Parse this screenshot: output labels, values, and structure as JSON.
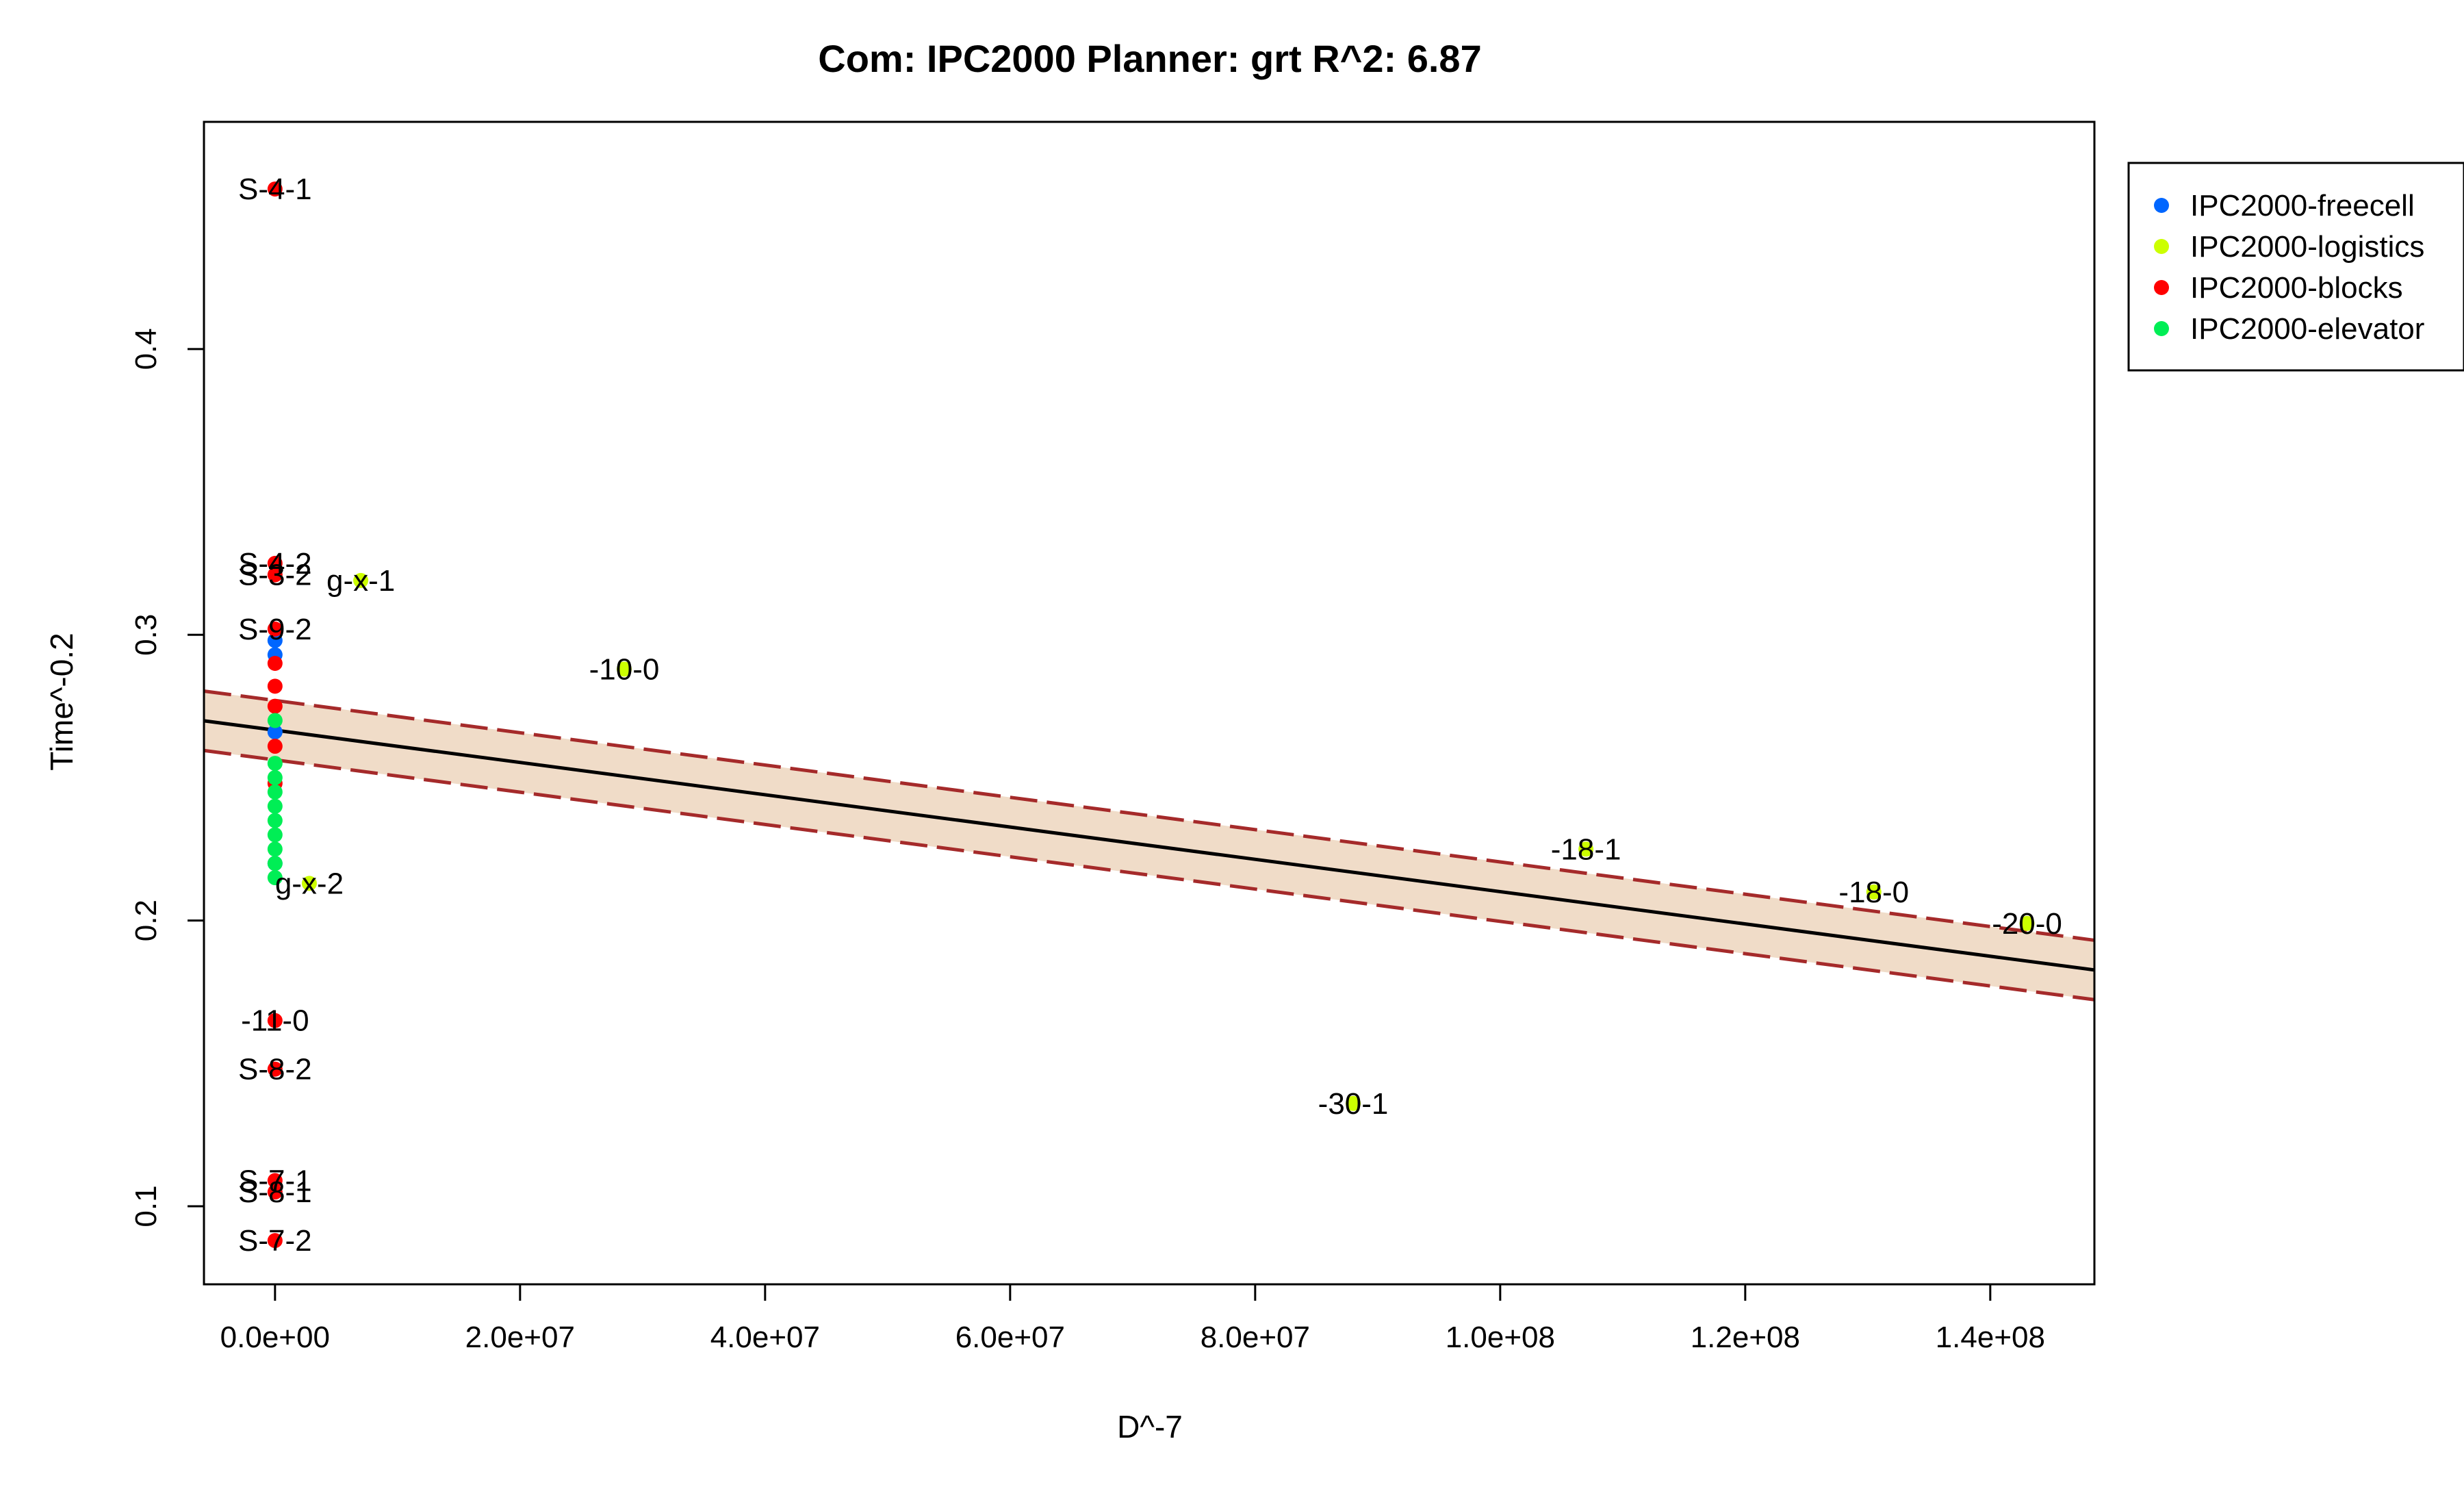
{
  "chart_data": {
    "type": "scatter",
    "title": "Com: IPC2000 Planner: grt R^2: 6.87",
    "xlabel": "D^-7",
    "ylabel": "Time^-0.2",
    "xlim": [
      -5800000,
      148500000
    ],
    "ylim": [
      0.0727,
      0.4795
    ],
    "x_ticks": [
      0,
      20000000,
      40000000,
      60000000,
      80000000,
      100000000,
      120000000,
      140000000
    ],
    "x_tick_labels": [
      "0.0e+00",
      "2.0e+07",
      "4.0e+07",
      "6.0e+07",
      "8.0e+07",
      "1.0e+08",
      "1.2e+08",
      "1.4e+08"
    ],
    "y_ticks": [
      0.1,
      0.2,
      0.3,
      0.4
    ],
    "y_tick_labels": [
      "0.1",
      "0.2",
      "0.3",
      "0.4"
    ],
    "grid": false,
    "legend_position": "top-right (outside plot)",
    "colors": {
      "IPC2000-freecell": "#0066ff",
      "IPC2000-logistics": "#ccff00",
      "IPC2000-blocks": "#ff0000",
      "IPC2000-elevator": "#00ee55",
      "fit_line": "#000000",
      "band_fill": "#f0dcc8",
      "band_edge": "#a52a2a"
    },
    "legend": [
      "IPC2000-freecell",
      "IPC2000-logistics",
      "IPC2000-blocks",
      "IPC2000-elevator"
    ],
    "fit": {
      "x": [
        -5800000,
        148500000
      ],
      "y": [
        0.2699,
        0.1827
      ],
      "lower": [
        0.2595,
        0.1723
      ],
      "upper": [
        0.2803,
        0.1931
      ]
    },
    "series": [
      {
        "name": "IPC2000-freecell",
        "points": [
          {
            "x": 0,
            "y": 0.266,
            "label": ""
          },
          {
            "x": 0,
            "y": 0.293,
            "label": ""
          },
          {
            "x": 0,
            "y": 0.298,
            "label": ""
          },
          {
            "x": 0,
            "y": 0.22,
            "label": ""
          }
        ]
      },
      {
        "name": "IPC2000-logistics",
        "points": [
          {
            "x": 7000000,
            "y": 0.319,
            "label": "g-x-1"
          },
          {
            "x": 2800000,
            "y": 0.213,
            "label": "g-x-2"
          },
          {
            "x": 28500000,
            "y": 0.288,
            "label": "-10-0"
          },
          {
            "x": 107000000,
            "y": 0.225,
            "label": "-18-1"
          },
          {
            "x": 130500000,
            "y": 0.21,
            "label": "-18-0"
          },
          {
            "x": 143000000,
            "y": 0.199,
            "label": "-20-0"
          },
          {
            "x": 88000000,
            "y": 0.136,
            "label": "-30-1"
          }
        ]
      },
      {
        "name": "IPC2000-blocks",
        "points": [
          {
            "x": 0,
            "y": 0.456,
            "label": "S-4-1"
          },
          {
            "x": 0,
            "y": 0.325,
            "label": "S-4-2"
          },
          {
            "x": 0,
            "y": 0.321,
            "label": "S-3-2"
          },
          {
            "x": 0,
            "y": 0.302,
            "label": "S-9-2"
          },
          {
            "x": 0,
            "y": 0.29,
            "label": ""
          },
          {
            "x": 0,
            "y": 0.282,
            "label": ""
          },
          {
            "x": 0,
            "y": 0.275,
            "label": ""
          },
          {
            "x": 0,
            "y": 0.261,
            "label": ""
          },
          {
            "x": 0,
            "y": 0.248,
            "label": ""
          },
          {
            "x": 0,
            "y": 0.165,
            "label": "-11-0"
          },
          {
            "x": 0,
            "y": 0.148,
            "label": "S-8-2"
          },
          {
            "x": 0,
            "y": 0.109,
            "label": "S-7-1"
          },
          {
            "x": 0,
            "y": 0.105,
            "label": "S-8-1"
          },
          {
            "x": 0,
            "y": 0.088,
            "label": "S-7-2"
          }
        ]
      },
      {
        "name": "IPC2000-elevator",
        "points": [
          {
            "x": 0,
            "y": 0.27,
            "label": ""
          },
          {
            "x": 0,
            "y": 0.255,
            "label": ""
          },
          {
            "x": 0,
            "y": 0.25,
            "label": ""
          },
          {
            "x": 0,
            "y": 0.245,
            "label": ""
          },
          {
            "x": 0,
            "y": 0.24,
            "label": ""
          },
          {
            "x": 0,
            "y": 0.235,
            "label": ""
          },
          {
            "x": 0,
            "y": 0.23,
            "label": ""
          },
          {
            "x": 0,
            "y": 0.225,
            "label": ""
          },
          {
            "x": 0,
            "y": 0.22,
            "label": ""
          },
          {
            "x": 0,
            "y": 0.215,
            "label": ""
          }
        ]
      }
    ]
  }
}
